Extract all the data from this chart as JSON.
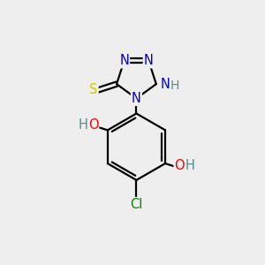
{
  "background_color": "#eeeeee",
  "bond_color": "#000000",
  "atom_colors": {
    "N": "#0000cc",
    "S": "#cccc00",
    "O": "#ff0000",
    "Cl": "#008800",
    "C": "#000000",
    "H": "#4a9090"
  },
  "title": ""
}
